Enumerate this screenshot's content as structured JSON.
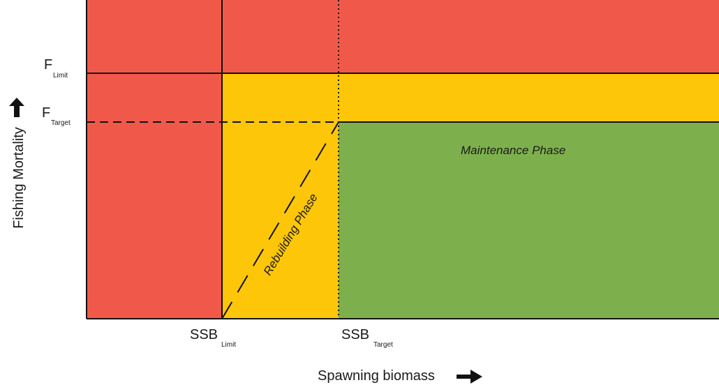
{
  "labels": {
    "f_limit_main": "F",
    "f_limit_sub": "Limit",
    "f_target_main": "F",
    "f_target_sub": "Target",
    "ssb_limit_main": "SSB",
    "ssb_limit_sub": "Limit",
    "ssb_target_main": "SSB",
    "ssb_target_sub": "Target",
    "y_axis": "Fishing Mortality",
    "x_axis": "Spawning biomass",
    "maintenance": "Maintenance Phase",
    "rebuilding": "Rebuilding Phase"
  },
  "colors": {
    "red_zone": "#f0594a",
    "yellow_zone": "#fdc608",
    "green_zone": "#7db04c",
    "lines": "#111111"
  }
}
